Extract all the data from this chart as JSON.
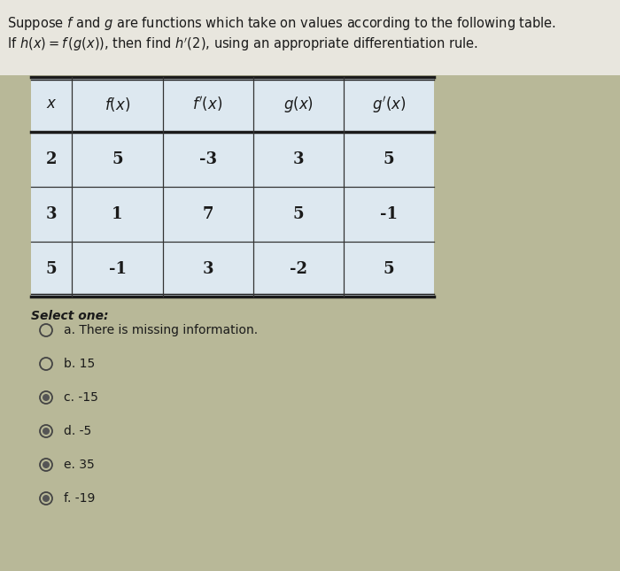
{
  "title_line1": "Suppose $f$ and $g$ are functions which take on values according to the following table.",
  "title_line2": "If $h(x) = f\\,(g(x))$, then find $h^{\\prime}(2)$, using an appropriate differentiation rule.",
  "col_headers": [
    "$x$",
    "$f(x)$",
    "$f^{\\prime}(x)$",
    "$g(x)$",
    "$g^{\\prime}(x)$"
  ],
  "table_data": [
    [
      "2",
      "5",
      "-3",
      "3",
      "5"
    ],
    [
      "3",
      "1",
      "7",
      "5",
      "-1"
    ],
    [
      "5",
      "-1",
      "3",
      "-2",
      "5"
    ]
  ],
  "select_one_label": "Select one:",
  "options": [
    [
      "a",
      "a. There is missing information."
    ],
    [
      "b",
      "b. 15"
    ],
    [
      "c",
      "c. -15"
    ],
    [
      "d",
      "d. -5"
    ],
    [
      "e",
      "e. 35"
    ],
    [
      "f",
      "f. -19"
    ]
  ],
  "selected_options": [
    "c",
    "d",
    "e",
    "f"
  ],
  "top_bg": "#e8e4d8",
  "bg_color": "#b8b898",
  "table_bg": "#dde8f0",
  "text_color": "#1a1a1a",
  "font_size_title": 10.5,
  "font_size_table": 12,
  "font_size_options": 10
}
